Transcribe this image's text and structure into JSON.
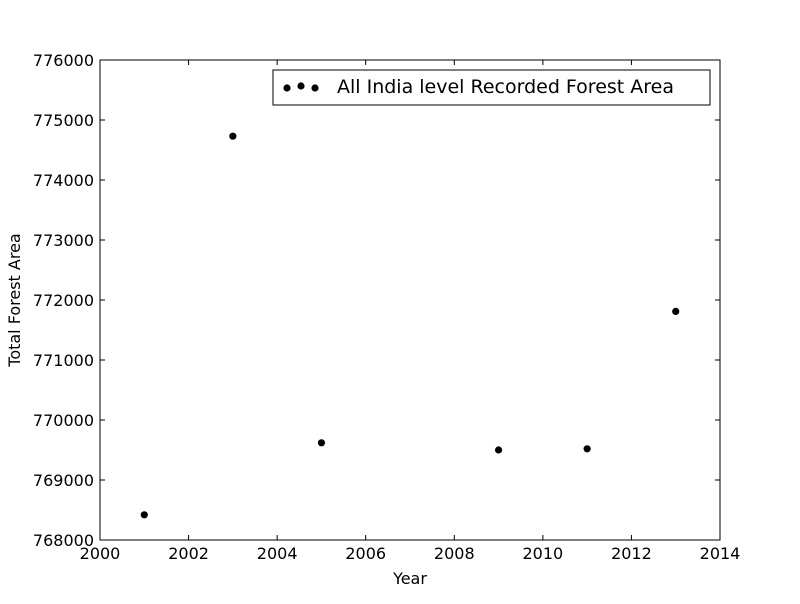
{
  "chart_data": {
    "type": "scatter",
    "title": "",
    "xlabel": "Year",
    "ylabel": "Total Forest Area",
    "xlim": [
      2000,
      2014
    ],
    "ylim": [
      768000,
      776000
    ],
    "xticks": [
      2000,
      2002,
      2004,
      2006,
      2008,
      2010,
      2012,
      2014
    ],
    "yticks": [
      768000,
      769000,
      770000,
      771000,
      772000,
      773000,
      774000,
      775000,
      776000
    ],
    "grid": false,
    "legend_position": "top-right",
    "series": [
      {
        "name": "All India level Recorded Forest Area",
        "color": "#000000",
        "marker": "circle",
        "points": [
          {
            "x": 2001,
            "y": 768420
          },
          {
            "x": 2003,
            "y": 774730
          },
          {
            "x": 2005,
            "y": 769620
          },
          {
            "x": 2009,
            "y": 769500
          },
          {
            "x": 2011,
            "y": 769520
          },
          {
            "x": 2013,
            "y": 771810
          }
        ]
      }
    ]
  }
}
